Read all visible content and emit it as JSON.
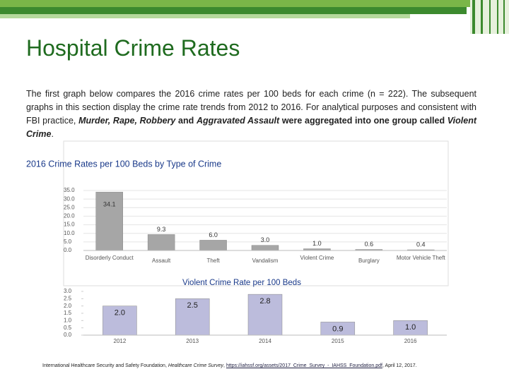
{
  "title": "Hospital Crime Rates",
  "paragraph": [
    "The first graph below compares the 2016 crime rates per 100 beds for each crime (n = 222). The subsequent graphs in this section display the crime rate trends from 2012 to 2016. For analytical purposes and consistent with FBI practice, ",
    "Murder, Rape, Robbery",
    " and ",
    "Aggravated Assault",
    " were aggregated into one group called ",
    "Violent Crime",
    "."
  ],
  "chart_data": [
    {
      "type": "bar",
      "title": "2016 Crime Rates per 100 Beds by Type of Crime",
      "categories": [
        "Disorderly Conduct",
        "Assault",
        "Theft",
        "Vandalism",
        "Violent Crime",
        "Burglary",
        "Motor Vehicle Theft"
      ],
      "values": [
        34.1,
        9.3,
        6.0,
        3.0,
        1.0,
        0.6,
        0.4
      ],
      "value_labels": [
        "34.1",
        "9.3",
        "6.0",
        "3.0",
        "1.0",
        "0.6",
        "0.4"
      ],
      "color": "#a6a6a6",
      "ylim": [
        0,
        35
      ],
      "yticks": [
        {
          "value": 0,
          "label": "0.0"
        },
        {
          "value": 5,
          "label": "5.0"
        },
        {
          "value": 10,
          "label": "10.0"
        },
        {
          "value": 15,
          "label": "15.0"
        },
        {
          "value": 20,
          "label": "20.0"
        },
        {
          "value": 25,
          "label": "25.0"
        },
        {
          "value": 30,
          "label": "30.0"
        },
        {
          "value": 35,
          "label": "35.0"
        }
      ],
      "grid": true
    },
    {
      "type": "bar",
      "title": "Violent Crime Rate per 100 Beds",
      "categories": [
        "2012",
        "2013",
        "2014",
        "2015",
        "2016"
      ],
      "values": [
        2.0,
        2.5,
        2.8,
        0.9,
        1.0
      ],
      "value_labels": [
        "2.0",
        "2.5",
        "2.8",
        "0.9",
        "1.0"
      ],
      "color": "#bcbcdc",
      "ylim": [
        0,
        3
      ],
      "yticks": [
        {
          "value": 0,
          "label": "0.0"
        },
        {
          "value": 0.5,
          "label": "0.5"
        },
        {
          "value": 1,
          "label": "1.0"
        },
        {
          "value": 1.5,
          "label": "1.5"
        },
        {
          "value": 2,
          "label": "2.0"
        },
        {
          "value": 2.5,
          "label": "2.5"
        },
        {
          "value": 3,
          "label": "3.0"
        }
      ],
      "grid": false
    }
  ],
  "footer": [
    "International Healthcare Security and Safety Foundation, ",
    "Healthcare Crime Survey",
    ", ",
    "https://iahssf.org/assets/2017_Crime_Survey_-_IAHSS_Foundation.pdf",
    ", April 12, 2017."
  ]
}
